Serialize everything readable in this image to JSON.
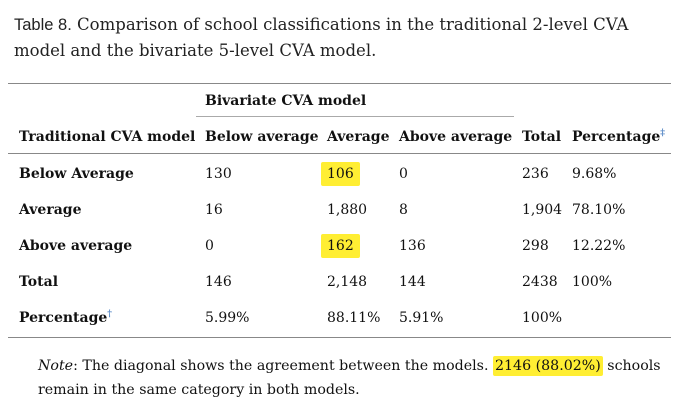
{
  "caption": {
    "label": "Table 8.",
    "text": "Comparison of school classifications in the traditional 2-level CVA model and the bivariate 5-level CVA model."
  },
  "table": {
    "group_header": "Bivariate CVA model",
    "columns": [
      "Traditional CVA model",
      "Below average",
      "Average",
      "Above average",
      "Total",
      "Percentage"
    ],
    "percentage_col_mark": "‡",
    "rows": [
      {
        "label": "Below Average",
        "cells": [
          "130",
          "106",
          "0",
          "236",
          "9.68%"
        ]
      },
      {
        "label": "Average",
        "cells": [
          "16",
          "1,880",
          "8",
          "1,904",
          "78.10%"
        ]
      },
      {
        "label": "Above average",
        "cells": [
          "0",
          "162",
          "136",
          "298",
          "12.22%"
        ]
      },
      {
        "label": "Total",
        "cells": [
          "146",
          "2,148",
          "144",
          "2438",
          "100%"
        ]
      },
      {
        "label": "Percentage",
        "label_mark": "†",
        "cells": [
          "5.99%",
          "88.11%",
          "5.91%",
          "100%",
          ""
        ]
      }
    ]
  },
  "note": {
    "label": "Note",
    "before": ": The diagonal shows the agreement between the models. ",
    "highlight": "2146 (88.02%)",
    "after": " schools remain in the same category in both models."
  },
  "colors": {
    "highlight": "#ffee33",
    "dagger": "#4a7fc1",
    "rule": "#888888"
  }
}
